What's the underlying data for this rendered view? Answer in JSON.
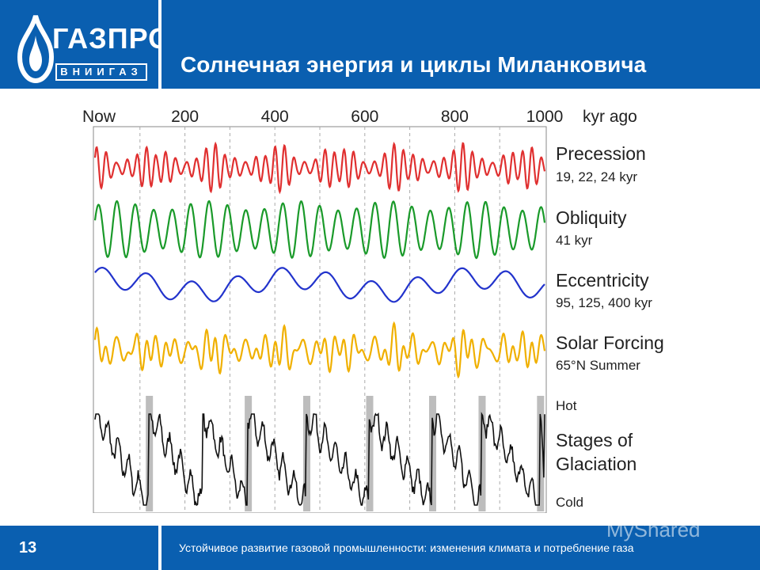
{
  "header": {
    "title": "Солнечная энергия и циклы Миланковича",
    "logo_top": "ГАЗПРОМ",
    "logo_bottom": "ВНИИГАЗ"
  },
  "colors": {
    "brand_blue": "#0a5fb0",
    "precession": "#e03030",
    "obliquity": "#1a9a2a",
    "eccentricity": "#2233cc",
    "solar_forcing": "#f0b000",
    "glaciation": "#111111",
    "glacial_band": "#bdbdbd"
  },
  "chart_data": {
    "type": "line",
    "x_axis_labels": [
      "Now",
      "200",
      "400",
      "600",
      "800",
      "1000",
      "kyr ago"
    ],
    "x_ticks": [
      0,
      200,
      400,
      600,
      800,
      1000
    ],
    "xlim": [
      0,
      1000
    ],
    "grid": "dashed vertical lines every 100 kyr",
    "series": [
      {
        "name": "Precession",
        "detail": "19, 22, 24 kyr",
        "periods_kyr": [
          19,
          22,
          24
        ]
      },
      {
        "name": "Obliquity",
        "detail": "41 kyr",
        "periods_kyr": [
          41
        ]
      },
      {
        "name": "Eccentricity",
        "detail": "95, 125, 400 kyr",
        "periods_kyr": [
          95,
          125,
          400
        ]
      },
      {
        "name": "Solar Forcing",
        "detail": "65°N Summer"
      },
      {
        "name": "Stages of Glaciation",
        "label_top": "Hot",
        "label_bottom": "Cold"
      }
    ],
    "glacial_shading_kyr": [
      120,
      340,
      470,
      610,
      750,
      860,
      990
    ]
  },
  "footer": {
    "page": "13",
    "text": "Устойчивое развитие газовой промышленности: изменения климата и потребление газа",
    "watermark": "MyShared"
  }
}
